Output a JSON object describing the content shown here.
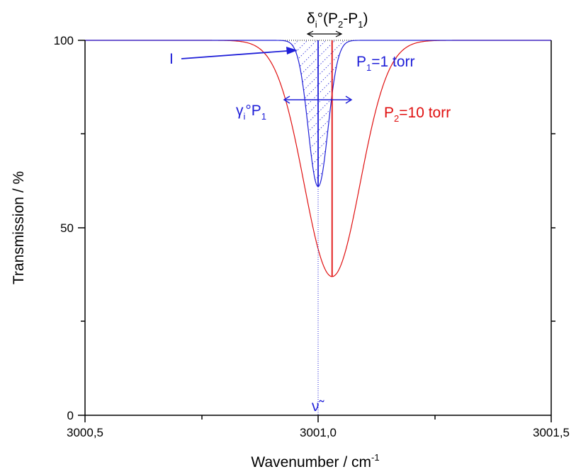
{
  "chart_data": {
    "type": "line",
    "title": "",
    "xlabel": "Wavenumber / cm",
    "xlabel_superscript": "-1",
    "ylabel": "Transmission / %",
    "xlim": [
      3000.5,
      3001.5
    ],
    "ylim": [
      0,
      100
    ],
    "x_ticks": [
      {
        "value": 3000.5,
        "label": "3000,5"
      },
      {
        "value": 3001.0,
        "label": "3001,0"
      },
      {
        "value": 3001.5,
        "label": "3001,5"
      }
    ],
    "y_ticks": [
      {
        "value": 0,
        "label": "0"
      },
      {
        "value": 50,
        "label": "50"
      },
      {
        "value": 100,
        "label": "100"
      }
    ],
    "grid": false,
    "series": [
      {
        "name": "P1=1 torr",
        "color": "#1f1fd8",
        "center": 3001.0,
        "min_value": 61,
        "half_width": 0.03
      },
      {
        "name": "P2=10 torr",
        "color": "#e01010",
        "center": 3001.03,
        "min_value": 37,
        "half_width": 0.085
      }
    ],
    "annotations": {
      "shift_label": {
        "main": "δ",
        "sub1": "i",
        "mid": "°(P",
        "sub2": "2",
        "mid2": "-P",
        "sub3": "1",
        "end": ")"
      },
      "intensity_label": "I",
      "p1_label": {
        "main": "P",
        "sub": "1",
        "end": "=1 torr"
      },
      "p2_label": {
        "main": "P",
        "sub": "2",
        "end": "=10 torr"
      },
      "width_label": {
        "main": "γ",
        "sub1": "i",
        "mid": "°P",
        "sub2": "1"
      },
      "nu_label": "ν̃"
    }
  }
}
